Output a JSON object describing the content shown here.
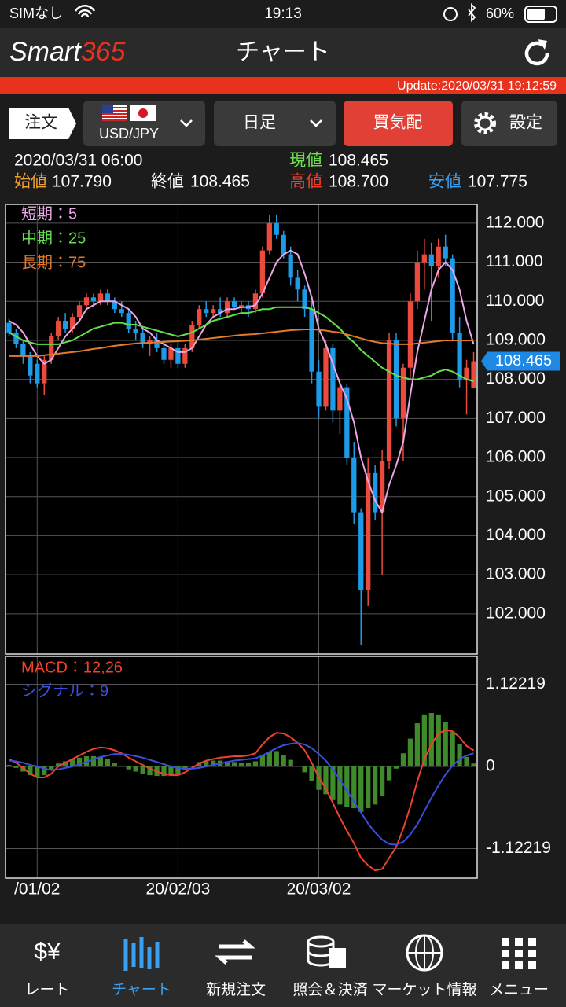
{
  "status": {
    "carrier": "SIMなし",
    "time": "19:13",
    "battery": "60%"
  },
  "header": {
    "logo_main": "Smart",
    "logo_num": "365",
    "title": "チャート"
  },
  "update": "Update:2020/03/31 19:12:59",
  "toolbar": {
    "order": "注文",
    "pair": "USD/JPY",
    "period": "日足",
    "quote": "買気配",
    "settings": "設定"
  },
  "quote": {
    "datetime": "2020/03/31 06:00",
    "current_label": "現値",
    "current": "108.465",
    "open_label": "始値",
    "open": "107.790",
    "close_label": "終値",
    "close": "108.465",
    "high_label": "高値",
    "high": "108.700",
    "low_label": "安値",
    "low": "107.775"
  },
  "chart_data": [
    {
      "type": "candlestick",
      "grid": true,
      "up_color": "#ec4a3c",
      "down_color": "#1e9be8",
      "categories": [
        null,
        null,
        null,
        null,
        "/01/02",
        null,
        null,
        null,
        null,
        null,
        null,
        null,
        null,
        null,
        null,
        null,
        null,
        null,
        null,
        null,
        null,
        null,
        null,
        null,
        "20/02/03",
        null,
        null,
        null,
        null,
        null,
        null,
        null,
        null,
        null,
        null,
        null,
        null,
        null,
        null,
        null,
        null,
        null,
        null,
        null,
        "20/03/02",
        null,
        null,
        null,
        null,
        null,
        null,
        null,
        null,
        null,
        null,
        null,
        null,
        null,
        null,
        null,
        null,
        null,
        null,
        null,
        null,
        null,
        null
      ],
      "open": [
        109.45,
        109.2,
        108.9,
        108.6,
        108.4,
        107.9,
        108.5,
        109.1,
        109.5,
        109.3,
        109.6,
        109.9,
        110.1,
        110.0,
        110.2,
        110.0,
        109.8,
        109.7,
        109.3,
        109.2,
        108.9,
        109.0,
        108.8,
        108.5,
        108.8,
        108.4,
        108.8,
        109.4,
        109.8,
        109.7,
        109.8,
        109.7,
        110.0,
        109.85,
        109.9,
        109.8,
        110.2,
        111.3,
        112.0,
        111.7,
        111.2,
        110.6,
        110.3,
        109.8,
        108.2,
        107.3,
        108.8,
        107.2,
        107.8,
        106.0,
        104.6,
        102.6,
        105.6,
        104.6,
        105.9,
        109.0,
        107.0,
        108.3,
        110.0,
        111.0,
        111.2,
        110.9,
        111.4,
        111.1,
        109.2,
        108.0,
        107.79
      ],
      "high": [
        109.55,
        109.3,
        109.0,
        108.7,
        108.5,
        108.6,
        109.2,
        109.6,
        109.7,
        109.7,
        110.0,
        110.2,
        110.2,
        110.3,
        110.3,
        110.1,
        110.0,
        109.8,
        109.5,
        109.3,
        109.1,
        109.2,
        109.0,
        108.9,
        109.0,
        108.9,
        109.5,
        109.9,
        110.0,
        109.9,
        110.1,
        110.1,
        110.1,
        110.0,
        110.0,
        110.3,
        111.4,
        112.2,
        112.2,
        111.8,
        111.4,
        110.8,
        110.4,
        110.0,
        108.5,
        109.0,
        108.9,
        108.0,
        107.9,
        106.4,
        104.7,
        106.0,
        105.8,
        106.2,
        109.2,
        109.2,
        108.4,
        110.2,
        111.3,
        111.6,
        111.5,
        111.6,
        111.7,
        111.2,
        109.6,
        108.5,
        108.7
      ],
      "low": [
        109.1,
        108.8,
        108.4,
        107.9,
        107.8,
        107.6,
        108.4,
        109.0,
        109.2,
        109.2,
        109.5,
        109.8,
        109.9,
        109.9,
        109.9,
        109.7,
        109.6,
        109.2,
        109.0,
        108.8,
        108.6,
        108.7,
        108.4,
        108.3,
        108.3,
        108.3,
        108.7,
        109.3,
        109.6,
        109.6,
        109.6,
        109.6,
        109.8,
        109.7,
        109.6,
        109.7,
        110.1,
        111.2,
        111.6,
        111.1,
        110.4,
        110.0,
        109.6,
        107.9,
        107.0,
        107.2,
        106.9,
        106.6,
        105.8,
        104.3,
        101.2,
        102.2,
        104.4,
        103.0,
        105.7,
        106.8,
        105.9,
        108.0,
        109.8,
        110.3,
        109.5,
        110.6,
        110.9,
        109.0,
        107.8,
        107.1,
        107.775
      ],
      "close": [
        109.2,
        108.9,
        108.6,
        108.1,
        107.9,
        108.5,
        109.1,
        109.5,
        109.3,
        109.6,
        109.9,
        110.1,
        110.0,
        110.2,
        110.0,
        109.8,
        109.7,
        109.3,
        109.2,
        108.9,
        109.0,
        108.8,
        108.5,
        108.8,
        108.4,
        108.8,
        109.4,
        109.8,
        109.7,
        109.8,
        109.7,
        110.0,
        109.85,
        109.9,
        109.8,
        110.2,
        111.3,
        112.0,
        111.7,
        111.2,
        110.6,
        110.3,
        109.8,
        108.2,
        107.3,
        108.8,
        107.2,
        107.8,
        106.0,
        104.6,
        102.6,
        105.6,
        104.6,
        105.9,
        109.0,
        107.0,
        108.3,
        110.0,
        111.0,
        111.2,
        110.9,
        111.4,
        111.1,
        109.2,
        108.0,
        108.3,
        108.465
      ],
      "series": [
        {
          "name": "短期：5",
          "color": "#eaa6e6",
          "values": [
            109.5,
            109.4,
            109.2,
            108.9,
            108.6,
            108.4,
            108.5,
            108.8,
            109.1,
            109.3,
            109.5,
            109.8,
            109.9,
            110.0,
            110.0,
            110.0,
            109.9,
            109.8,
            109.6,
            109.3,
            109.2,
            109.0,
            108.9,
            108.8,
            108.7,
            108.7,
            108.8,
            109.1,
            109.4,
            109.6,
            109.7,
            109.8,
            109.8,
            109.85,
            109.85,
            109.9,
            110.2,
            110.6,
            111.0,
            111.2,
            111.3,
            111.2,
            110.7,
            110.1,
            109.3,
            108.9,
            108.4,
            107.9,
            107.5,
            106.9,
            106.0,
            105.4,
            104.9,
            104.6,
            105.3,
            105.8,
            106.4,
            107.6,
            108.7,
            109.5,
            110.3,
            110.8,
            111.0,
            110.8,
            110.3,
            109.5,
            108.9
          ]
        },
        {
          "name": "中期：25",
          "color": "#62e04c",
          "values": [
            109.2,
            109.1,
            109.0,
            108.95,
            108.9,
            108.9,
            108.9,
            108.9,
            108.95,
            109.0,
            109.1,
            109.2,
            109.3,
            109.35,
            109.4,
            109.45,
            109.45,
            109.4,
            109.4,
            109.35,
            109.3,
            109.25,
            109.2,
            109.15,
            109.1,
            109.15,
            109.2,
            109.3,
            109.4,
            109.5,
            109.55,
            109.6,
            109.65,
            109.7,
            109.7,
            109.75,
            109.8,
            109.8,
            109.85,
            109.85,
            109.85,
            109.85,
            109.85,
            109.8,
            109.7,
            109.6,
            109.45,
            109.3,
            109.1,
            108.95,
            108.75,
            108.6,
            108.45,
            108.3,
            108.2,
            108.1,
            108.05,
            108.0,
            108.0,
            108.05,
            108.1,
            108.2,
            108.25,
            108.2,
            108.1,
            108.0,
            107.95
          ]
        },
        {
          "name": "長期：75",
          "color": "#e27a2c",
          "values": [
            108.6,
            108.6,
            108.6,
            108.6,
            108.6,
            108.62,
            108.64,
            108.66,
            108.68,
            108.7,
            108.72,
            108.75,
            108.78,
            108.8,
            108.83,
            108.86,
            108.88,
            108.9,
            108.92,
            108.93,
            108.94,
            108.95,
            108.96,
            108.97,
            108.98,
            108.99,
            109.0,
            109.02,
            109.04,
            109.06,
            109.08,
            109.1,
            109.12,
            109.14,
            109.15,
            109.16,
            109.18,
            109.2,
            109.22,
            109.24,
            109.26,
            109.27,
            109.28,
            109.28,
            109.27,
            109.25,
            109.22,
            109.2,
            109.15,
            109.1,
            109.05,
            109.0,
            108.96,
            108.93,
            108.92,
            108.9,
            108.9,
            108.9,
            108.92,
            108.94,
            108.96,
            108.98,
            109.0,
            109.0,
            109.0,
            109.0,
            109.0
          ]
        }
      ],
      "ylim": [
        100.97,
        112.48
      ],
      "yticks": [
        {
          "value": 102,
          "label": "102.000"
        },
        {
          "value": 103,
          "label": "103.000"
        },
        {
          "value": 104,
          "label": "104.000"
        },
        {
          "value": 105,
          "label": "105.000"
        },
        {
          "value": 106,
          "label": "106.000"
        },
        {
          "value": 107,
          "label": "107.000"
        },
        {
          "value": 108,
          "label": "108.000"
        },
        {
          "value": 109,
          "label": "109.000"
        },
        {
          "value": 110,
          "label": "110.000"
        },
        {
          "value": 111,
          "label": "111.000"
        },
        {
          "value": 112,
          "label": "112.000"
        }
      ],
      "last_price": 108.465,
      "last_price_color": "#1e88e5"
    },
    {
      "type": "macd",
      "grid": true,
      "series": [
        {
          "name": "MACD：12,26",
          "color": "#f0412f",
          "values": [
            0.1,
            0.05,
            -0.02,
            -0.1,
            -0.15,
            -0.15,
            -0.1,
            0.0,
            0.05,
            0.1,
            0.15,
            0.2,
            0.24,
            0.26,
            0.25,
            0.22,
            0.18,
            0.12,
            0.07,
            0.02,
            -0.03,
            -0.07,
            -0.1,
            -0.12,
            -0.12,
            -0.08,
            -0.02,
            0.04,
            0.08,
            0.1,
            0.12,
            0.13,
            0.14,
            0.14,
            0.15,
            0.18,
            0.3,
            0.4,
            0.46,
            0.45,
            0.4,
            0.32,
            0.22,
            0.05,
            -0.15,
            -0.3,
            -0.5,
            -0.7,
            -0.88,
            -1.05,
            -1.25,
            -1.35,
            -1.42,
            -1.4,
            -1.25,
            -1.1,
            -0.85,
            -0.55,
            -0.2,
            0.1,
            0.3,
            0.45,
            0.5,
            0.48,
            0.4,
            0.28,
            0.22
          ]
        },
        {
          "name": "シグナル：9",
          "color": "#3a4fe0",
          "values": [
            0.08,
            0.07,
            0.05,
            0.02,
            0.0,
            -0.03,
            -0.05,
            -0.04,
            -0.02,
            0.0,
            0.03,
            0.06,
            0.1,
            0.13,
            0.15,
            0.17,
            0.17,
            0.16,
            0.14,
            0.12,
            0.09,
            0.06,
            0.03,
            0.0,
            -0.02,
            -0.03,
            -0.03,
            -0.02,
            0.0,
            0.02,
            0.04,
            0.06,
            0.08,
            0.09,
            0.1,
            0.11,
            0.15,
            0.2,
            0.25,
            0.29,
            0.31,
            0.32,
            0.3,
            0.25,
            0.17,
            0.08,
            -0.04,
            -0.18,
            -0.33,
            -0.48,
            -0.63,
            -0.78,
            -0.9,
            -1.0,
            -1.06,
            -1.07,
            -1.03,
            -0.93,
            -0.79,
            -0.61,
            -0.43,
            -0.26,
            -0.11,
            0.01,
            0.1,
            0.15,
            0.18
          ]
        }
      ],
      "histogram": {
        "color": "#3f8a2a",
        "values": [
          0.02,
          -0.02,
          -0.07,
          -0.12,
          -0.15,
          -0.12,
          -0.05,
          0.04,
          0.07,
          0.1,
          0.12,
          0.14,
          0.14,
          0.13,
          0.1,
          0.05,
          0.01,
          -0.04,
          -0.07,
          -0.1,
          -0.12,
          -0.13,
          -0.13,
          -0.12,
          -0.1,
          -0.05,
          0.01,
          0.06,
          0.08,
          0.08,
          0.08,
          0.07,
          0.06,
          0.05,
          0.05,
          0.07,
          0.15,
          0.2,
          0.21,
          0.16,
          0.09,
          0.0,
          -0.08,
          -0.2,
          -0.32,
          -0.38,
          -0.46,
          -0.52,
          -0.55,
          -0.57,
          -0.62,
          -0.57,
          -0.52,
          -0.4,
          -0.19,
          -0.03,
          0.18,
          0.38,
          0.59,
          0.71,
          0.73,
          0.71,
          0.61,
          0.47,
          0.3,
          0.13,
          0.04
        ]
      },
      "ylim": [
        -1.525,
        1.503
      ],
      "yticks": [
        -1.12219,
        0,
        1.12219
      ]
    }
  ],
  "tabs": [
    "レート",
    "チャート",
    "新規注文",
    "照会＆決済",
    "マーケット情報",
    "メニュー"
  ]
}
